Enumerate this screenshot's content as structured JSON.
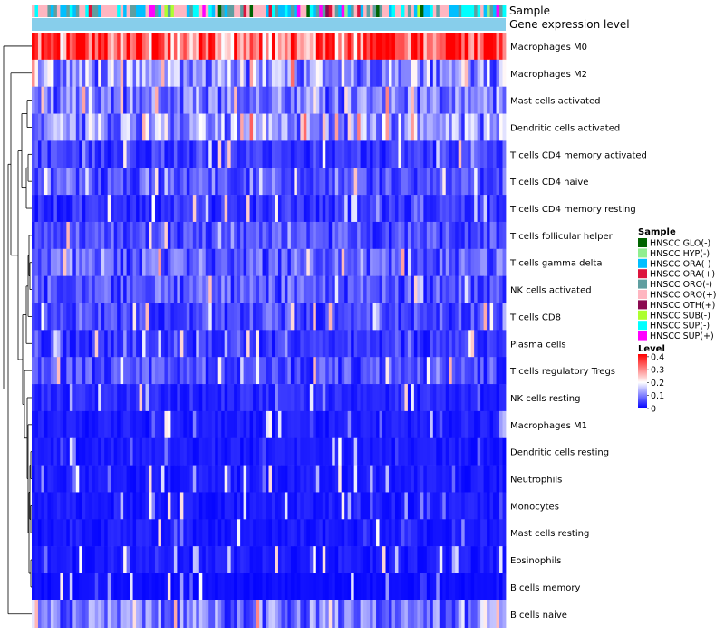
{
  "chart_data": {
    "type": "heatmap",
    "annotation_tracks": [
      "Sample",
      "Gene expression level"
    ],
    "rows": [
      "Macrophages M0",
      "Macrophages M2",
      "Mast cells activated",
      "Dendritic cells activated",
      "T cells CD4 memory activated",
      "T cells CD4 naive",
      "T cells CD4 memory resting",
      "T cells follicular helper",
      "T cells gamma delta",
      "NK cells activated",
      "T cells CD8",
      "Plasma cells",
      "T cells regulatory  Tregs",
      "NK cells resting",
      "Macrophages M1",
      "Dendritic cells resting",
      "Neutrophils",
      "Monocytes",
      "Mast cells resting",
      "Eosinophils",
      "B cells memory",
      "B cells naive"
    ],
    "row_mean_levels": [
      0.32,
      0.12,
      0.09,
      0.12,
      0.05,
      0.06,
      0.04,
      0.06,
      0.07,
      0.07,
      0.06,
      0.04,
      0.06,
      0.03,
      0.02,
      0.02,
      0.02,
      0.02,
      0.02,
      0.02,
      0.01,
      0.09
    ],
    "n_samples": 150,
    "sample_legend": {
      "title": "Sample",
      "items": [
        {
          "label": "HNSCC GLO(-)",
          "color": "#006400"
        },
        {
          "label": "HNSCC HYP(-)",
          "color": "#90ee90"
        },
        {
          "label": "HNSCC ORA(-)",
          "color": "#00bfff"
        },
        {
          "label": "HNSCC ORA(+)",
          "color": "#dc143c"
        },
        {
          "label": "HNSCC ORO(-)",
          "color": "#5f9ea0"
        },
        {
          "label": "HNSCC ORO(+)",
          "color": "#ffb6c1"
        },
        {
          "label": "HNSCC OTH(+)",
          "color": "#8b0a50"
        },
        {
          "label": "HNSCC SUB(-)",
          "color": "#adff2f"
        },
        {
          "label": "HNSCC SUP(-)",
          "color": "#00ffff"
        },
        {
          "label": "HNSCC SUP(+)",
          "color": "#ff00ff"
        }
      ]
    },
    "level_legend": {
      "title": "Level",
      "ticks": [
        "0.4",
        "0.3",
        "0.2",
        "0.1",
        "0"
      ],
      "tick_values": [
        0.4,
        0.3,
        0.2,
        0.1,
        0
      ],
      "range": [
        0,
        0.42
      ],
      "colors": [
        "#0000ff",
        "#ffffff",
        "#ff0000"
      ]
    },
    "expression_level_track_color": "#87ceeb",
    "legend_placement": "right"
  }
}
